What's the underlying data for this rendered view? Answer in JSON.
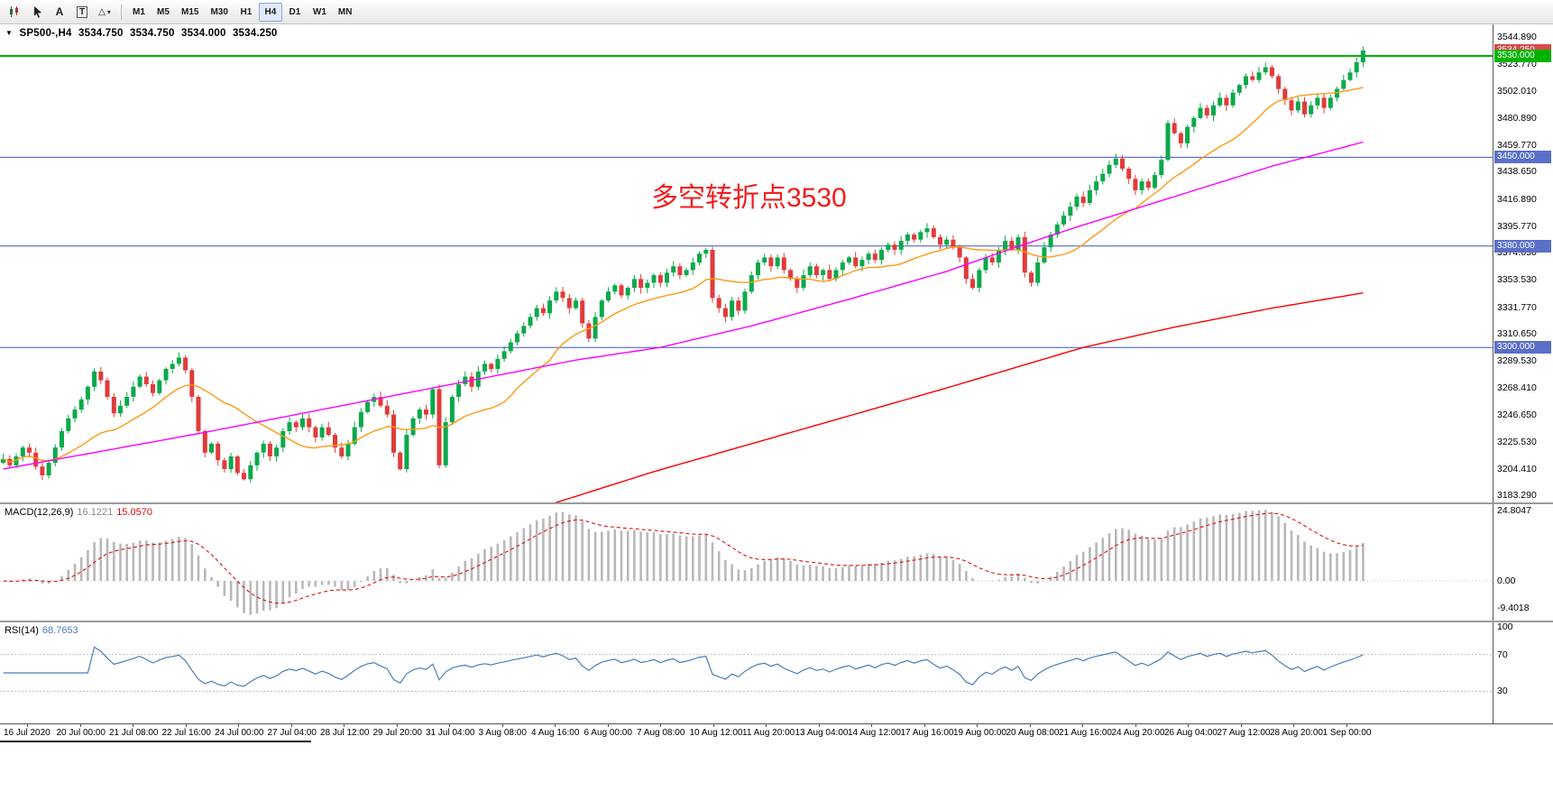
{
  "toolbar": {
    "tools": {
      "text_label": "A",
      "textbox_label": "T"
    },
    "timeframes": [
      {
        "label": "M1",
        "active": false
      },
      {
        "label": "M5",
        "active": false
      },
      {
        "label": "M15",
        "active": false
      },
      {
        "label": "M30",
        "active": false
      },
      {
        "label": "H1",
        "active": false
      },
      {
        "label": "H4",
        "active": true
      },
      {
        "label": "D1",
        "active": false
      },
      {
        "label": "W1",
        "active": false
      },
      {
        "label": "MN",
        "active": false
      }
    ]
  },
  "icons": {
    "collapse_triangle": "▼",
    "shapes_glyph": "△",
    "shapes_caret": "▾"
  },
  "quote": {
    "symbol_period": "SP500-,H4",
    "open": "3534.750",
    "high": "3534.750",
    "low": "3534.000",
    "close": "3534.250"
  },
  "annotation": {
    "text": "多空转折点3530",
    "color": "#f21d1d"
  },
  "price_axis": {
    "ticks": [
      "3544.890",
      "3523.770",
      "3502.010",
      "3480.890",
      "3459.770",
      "3438.650",
      "3416.890",
      "3395.770",
      "3374.650",
      "3353.530",
      "3331.770",
      "3310.650",
      "3289.530",
      "3268.410",
      "3246.650",
      "3225.530",
      "3204.410",
      "3183.290"
    ],
    "tags": [
      {
        "text": "3534.250",
        "price": 3534.25,
        "color": "#d94a4a"
      },
      {
        "text": "3530.000",
        "price": 3530,
        "color": "#00b300"
      },
      {
        "text": "3450.000",
        "price": 3450,
        "color": "#5a6fc8"
      },
      {
        "text": "3380.000",
        "price": 3380,
        "color": "#5a6fc8"
      },
      {
        "text": "3300.000",
        "price": 3300,
        "color": "#5a6fc8"
      }
    ]
  },
  "macd": {
    "label": "MACD(12,26,9)",
    "value_main": "16.1221",
    "value_signal": "15.0570",
    "axis": [
      "24.8047",
      "0.00",
      "-9.4018"
    ]
  },
  "rsi": {
    "label": "RSI(14)",
    "value": "68.7653",
    "axis": [
      "100",
      "70",
      "30"
    ]
  },
  "time_axis": {
    "labels": [
      "16 Jul 2020",
      "20 Jul 00:00",
      "21 Jul 08:00",
      "22 Jul 16:00",
      "24 Jul 00:00",
      "27 Jul 04:00",
      "28 Jul 12:00",
      "29 Jul 20:00",
      "31 Jul 04:00",
      "3 Aug 08:00",
      "4 Aug 16:00",
      "6 Aug 00:00",
      "7 Aug 08:00",
      "10 Aug 12:00",
      "11 Aug 20:00",
      "13 Aug 04:00",
      "14 Aug 12:00",
      "17 Aug 16:00",
      "19 Aug 00:00",
      "20 Aug 08:00",
      "21 Aug 16:00",
      "24 Aug 20:00",
      "26 Aug 04:00",
      "27 Aug 12:00",
      "28 Aug 20:00",
      "1 Sep 00:00"
    ]
  },
  "chart_data": {
    "type": "candlestick",
    "symbol": "SP500-",
    "timeframe": "H4",
    "colors": {
      "up": "#0ba94a",
      "down": "#e13b3b",
      "ma_orange": "#ff9914",
      "ma_magenta": "#ff00ff",
      "ma_red": "#ff0000",
      "macd_hist": "#b8b8b8",
      "macd_signal": "#e01010",
      "rsi_line": "#4a7ebb",
      "hline_blue": "#3b57c8",
      "hline_green": "#00b300"
    },
    "price_panel": {
      "y_range": [
        3177.7,
        3554.9
      ],
      "ohlc_current": [
        3534.75,
        3534.75,
        3534.0,
        3534.25
      ],
      "hlines": [
        {
          "price": 3530,
          "color": "#00b300",
          "width": 2
        },
        {
          "price": 3450,
          "color": "#3b57c8",
          "width": 1
        },
        {
          "price": 3380,
          "color": "#3b57c8",
          "width": 1
        },
        {
          "price": 3300,
          "color": "#3b57c8",
          "width": 1
        }
      ],
      "ma": {
        "orange": {
          "period": 18
        },
        "magenta": {
          "anchors": [
            [
              0,
              3204
            ],
            [
              15,
              3218
            ],
            [
              30,
              3232
            ],
            [
              45,
              3247
            ],
            [
              60,
              3262
            ],
            [
              75,
              3277
            ],
            [
              88,
              3290
            ],
            [
              101,
              3300
            ],
            [
              115,
              3317
            ],
            [
              130,
              3338
            ],
            [
              145,
              3360
            ],
            [
              155,
              3378
            ],
            [
              165,
              3395
            ],
            [
              175,
              3411
            ],
            [
              185,
              3427
            ],
            [
              195,
              3443
            ],
            [
              209,
              3462
            ]
          ]
        },
        "red": {
          "anchors": [
            [
              70,
              3148
            ],
            [
              84,
              3176
            ],
            [
              100,
              3202
            ],
            [
              115,
              3224
            ],
            [
              130,
              3246
            ],
            [
              145,
              3268
            ],
            [
              166,
              3300
            ],
            [
              180,
              3316
            ],
            [
              195,
              3331
            ],
            [
              209,
              3343
            ]
          ]
        }
      },
      "closes": [
        3212,
        3207,
        3214,
        3221,
        3217,
        3206,
        3199,
        3209,
        3221,
        3234,
        3244,
        3251,
        3259,
        3269,
        3281,
        3274,
        3261,
        3248,
        3254,
        3261,
        3269,
        3277,
        3271,
        3264,
        3274,
        3283,
        3287,
        3292,
        3282,
        3261,
        3234,
        3217,
        3224,
        3211,
        3204,
        3214,
        3201,
        3196,
        3207,
        3217,
        3224,
        3214,
        3221,
        3234,
        3241,
        3237,
        3244,
        3237,
        3229,
        3237,
        3231,
        3221,
        3214,
        3224,
        3237,
        3249,
        3257,
        3261,
        3254,
        3247,
        3217,
        3204,
        3231,
        3244,
        3251,
        3247,
        3267,
        3207,
        3241,
        3261,
        3271,
        3277,
        3269,
        3281,
        3287,
        3283,
        3291,
        3297,
        3304,
        3311,
        3317,
        3324,
        3331,
        3327,
        3337,
        3344,
        3339,
        3331,
        3337,
        3319,
        3307,
        3324,
        3337,
        3344,
        3349,
        3341,
        3347,
        3354,
        3347,
        3351,
        3357,
        3351,
        3359,
        3364,
        3357,
        3361,
        3367,
        3374,
        3377,
        3339,
        3331,
        3324,
        3337,
        3329,
        3344,
        3357,
        3367,
        3371,
        3364,
        3371,
        3361,
        3354,
        3347,
        3357,
        3364,
        3357,
        3361,
        3354,
        3361,
        3367,
        3371,
        3364,
        3369,
        3374,
        3369,
        3377,
        3381,
        3377,
        3384,
        3389,
        3385,
        3391,
        3394,
        3387,
        3381,
        3385,
        3379,
        3371,
        3354,
        3347,
        3361,
        3371,
        3367,
        3377,
        3384,
        3377,
        3387,
        3359,
        3351,
        3367,
        3379,
        3389,
        3397,
        3404,
        3411,
        3419,
        3414,
        3424,
        3431,
        3437,
        3444,
        3449,
        3441,
        3433,
        3424,
        3431,
        3426,
        3436,
        3448,
        3477,
        3469,
        3461,
        3474,
        3481,
        3489,
        3483,
        3491,
        3497,
        3491,
        3501,
        3507,
        3514,
        3511,
        3517,
        3521,
        3514,
        3504,
        3495,
        3487,
        3494,
        3484,
        3491,
        3497,
        3489,
        3497,
        3504,
        3511,
        3517,
        3525,
        3534.25
      ]
    },
    "macd_panel": {
      "fast": 12,
      "slow": 26,
      "signal": 9,
      "current_main": 16.1221,
      "current_signal": 15.057,
      "axis_values": [
        24.8047,
        0,
        -9.4018
      ]
    },
    "rsi_panel": {
      "period": 14,
      "current": 68.7653,
      "levels": [
        70,
        30
      ],
      "scale": [
        0,
        100
      ]
    }
  }
}
